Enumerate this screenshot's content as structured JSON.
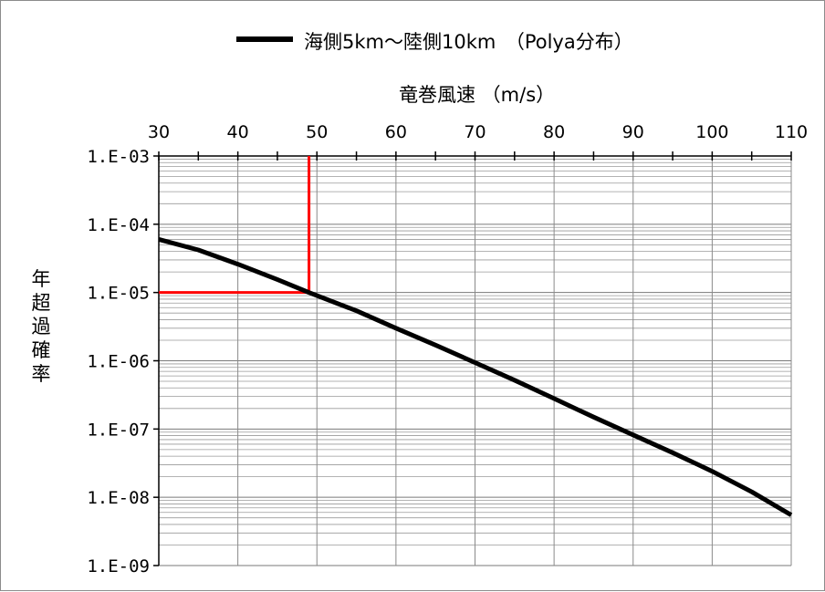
{
  "chart_data": {
    "type": "line",
    "title": "竜巻風速 （m/s）",
    "xlabel": "竜巻風速 （m/s）",
    "ylabel": "年超過確率",
    "y_scale": "log",
    "xlim": [
      30,
      110
    ],
    "ylim": [
      1e-09,
      0.001
    ],
    "x_ticks": [
      30,
      40,
      50,
      60,
      70,
      80,
      90,
      100,
      110
    ],
    "x_tick_labels": [
      "30",
      "40",
      "50",
      "60",
      "70",
      "80",
      "90",
      "100",
      "110"
    ],
    "y_ticks": [
      0.001,
      0.0001,
      1e-05,
      1e-06,
      1e-07,
      1e-08,
      1e-09
    ],
    "y_tick_labels": [
      "1.E-03",
      "1.E-04",
      "1.E-05",
      "1.E-06",
      "1.E-07",
      "1.E-08",
      "1.E-09"
    ],
    "x_axis_position": "top",
    "grid": true,
    "legend_position": "top",
    "series": [
      {
        "name": "海側5km～陸側10km　（Polya分布）",
        "color": "#000000",
        "x": [
          30,
          35,
          40,
          45,
          49,
          55,
          60,
          65,
          70,
          75,
          80,
          85,
          90,
          95,
          100,
          105,
          110
        ],
        "y": [
          6e-05,
          4.2e-05,
          2.6e-05,
          1.55e-05,
          1e-05,
          5.4e-06,
          3e-06,
          1.7e-06,
          9.4e-07,
          5.2e-07,
          2.8e-07,
          1.5e-07,
          8.2e-08,
          4.5e-08,
          2.4e-08,
          1.2e-08,
          5.5e-09
        ]
      }
    ],
    "reference_lines": [
      {
        "type": "vertical",
        "x": 49,
        "y_from": 1e-05,
        "y_to": 0.001,
        "color": "#ff0000"
      },
      {
        "type": "horizontal",
        "y": 1e-05,
        "x_from": 30,
        "x_to": 49,
        "color": "#ff0000"
      }
    ]
  }
}
